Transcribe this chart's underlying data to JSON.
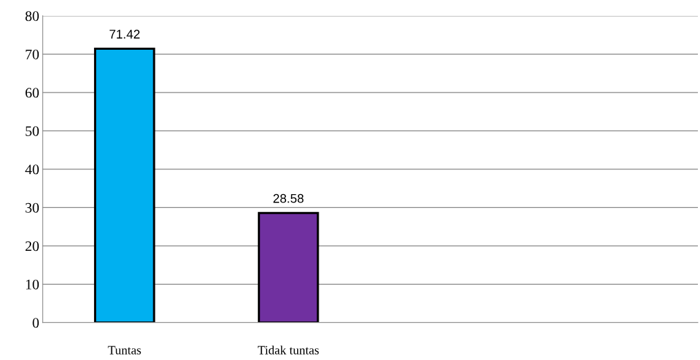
{
  "chart_data": {
    "type": "bar",
    "categories": [
      "Tuntas",
      "Tidak tuntas",
      null,
      null
    ],
    "values": [
      71.42,
      28.58,
      null,
      null
    ],
    "colors": [
      "#00b0f0",
      "#7030a0",
      null,
      null
    ],
    "ylim": [
      0,
      80
    ],
    "yticks": [
      0,
      10,
      20,
      30,
      40,
      50,
      60,
      70,
      80
    ],
    "grid": "y",
    "data_labels": true,
    "legend": false
  }
}
